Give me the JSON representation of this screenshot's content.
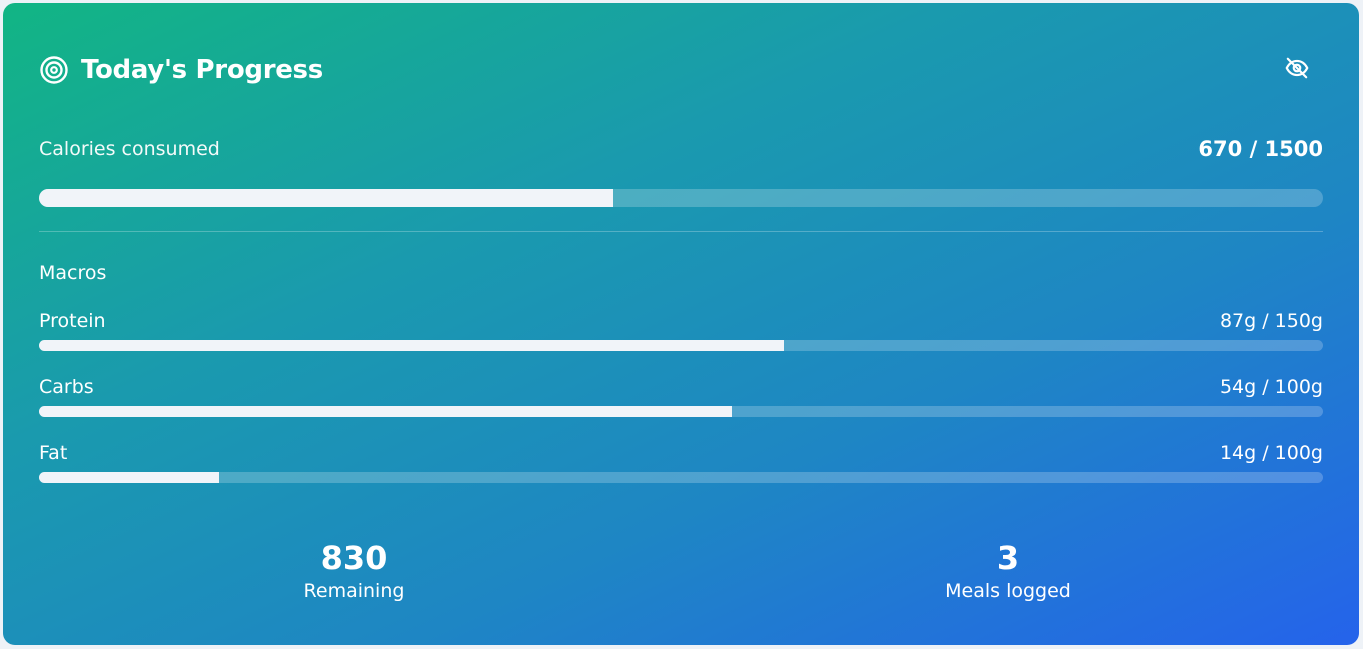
{
  "header": {
    "title": "Today's Progress",
    "target_icon": "target-icon",
    "toggle_icon": "eye-off-icon"
  },
  "calories": {
    "label": "Calories consumed",
    "value_text": "670 / 1500",
    "consumed": 670,
    "goal": 1500
  },
  "macros": {
    "label": "Macros",
    "items": [
      {
        "name": "Protein",
        "value_text": "87g / 150g",
        "current": 87,
        "goal": 150
      },
      {
        "name": "Carbs",
        "value_text": "54g / 100g",
        "current": 54,
        "goal": 100
      },
      {
        "name": "Fat",
        "value_text": "14g / 100g",
        "current": 14,
        "goal": 100
      }
    ]
  },
  "stats": {
    "remaining_value": "830",
    "remaining_label": "Remaining",
    "meals_value": "3",
    "meals_label": "Meals logged"
  },
  "colors": {
    "gradient_start": "#12b584",
    "gradient_end": "#2563eb",
    "bar_fill": "#f1f4f9"
  }
}
